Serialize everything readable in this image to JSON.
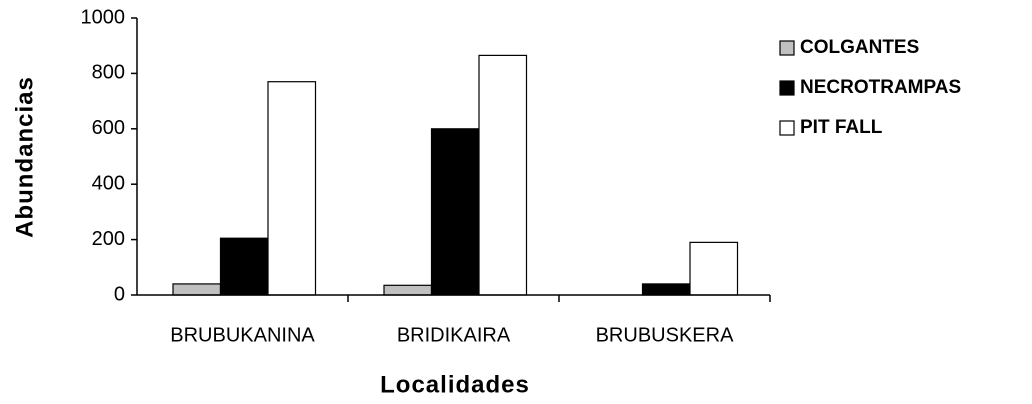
{
  "chart_data": {
    "type": "bar",
    "categories": [
      "BRUBUKANINA",
      "BRIDIKAIRA",
      "BRUBUSKERA"
    ],
    "series": [
      {
        "name": "COLGANTES",
        "color": "#c0c0c0",
        "values": [
          40,
          35,
          0
        ]
      },
      {
        "name": "NECROTRAMPAS",
        "color": "#000000",
        "values": [
          205,
          600,
          40
        ]
      },
      {
        "name": "PIT FALL",
        "color": "#ffffff",
        "values": [
          770,
          865,
          190
        ]
      }
    ],
    "ylabel": "Abundancias",
    "xlabel": "Localidades",
    "ylim": [
      0,
      1000
    ],
    "yticks": [
      0,
      200,
      400,
      600,
      800,
      1000
    ],
    "grid": false,
    "legend": "right"
  }
}
